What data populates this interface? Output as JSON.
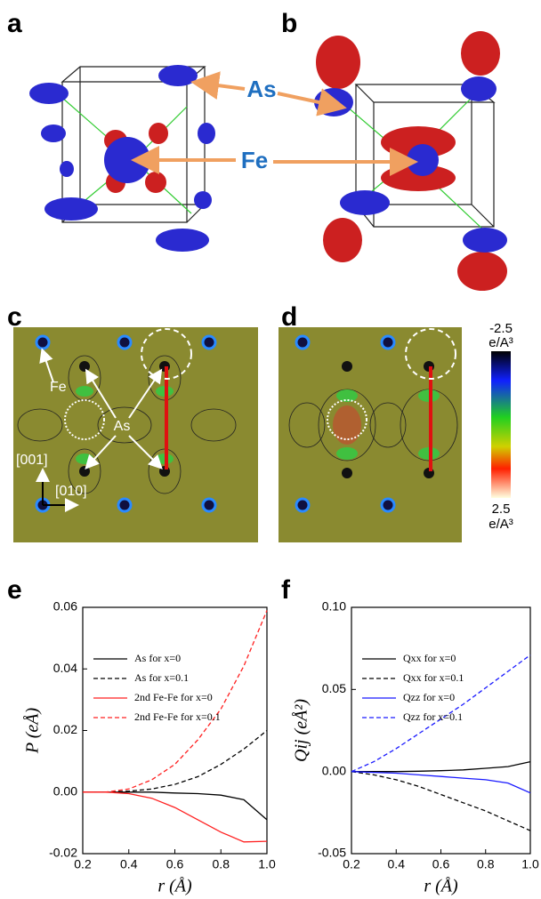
{
  "figure": {
    "panel_labels": [
      "a",
      "b",
      "c",
      "d",
      "e",
      "f"
    ],
    "atom_labels": {
      "as": "As",
      "fe": "Fe"
    },
    "map_labels": {
      "fe": "Fe",
      "as": "As",
      "dir1": "[001]",
      "dir2": "[010]"
    },
    "colorbar": {
      "top": "-2.5",
      "top_unit": "e/A³",
      "bottom": "2.5",
      "bottom_unit": "e/A³"
    }
  },
  "chart_data": [
    {
      "type": "line",
      "xlabel": "r (Å)",
      "ylabel": "P (eÅ)",
      "x": [
        0.2,
        0.3,
        0.4,
        0.5,
        0.6,
        0.7,
        0.8,
        0.9,
        1.0
      ],
      "xlim": [
        0.2,
        1.0
      ],
      "xticks": [
        0.2,
        0.4,
        0.6,
        0.8,
        {
          "value": 1,
          "label": "1.0"
        }
      ],
      "ylim": [
        -0.02,
        0.06
      ],
      "yticks": [
        -0.02,
        {
          "value": 0,
          "label": "0.00"
        },
        0.02,
        0.04,
        0.06
      ],
      "legend": "upper left",
      "series": [
        {
          "name": "As for x=0",
          "color": "#000000",
          "dash": false,
          "values": [
            0,
            0,
            0,
            0,
            -0.0003,
            -0.0005,
            -0.001,
            -0.0025,
            -0.009
          ]
        },
        {
          "name": "As for x=0.1",
          "color": "#000000",
          "dash": true,
          "values": [
            0,
            0,
            0.0003,
            0.001,
            0.0025,
            0.005,
            0.009,
            0.014,
            0.02
          ]
        },
        {
          "name": "2nd Fe-Fe for x=0",
          "color": "#ff2020",
          "dash": false,
          "values": [
            0,
            0,
            -0.0005,
            -0.002,
            -0.005,
            -0.009,
            -0.013,
            -0.0162,
            -0.016
          ]
        },
        {
          "name": "2nd Fe-Fe for x=0.1",
          "color": "#ff2020",
          "dash": true,
          "values": [
            0,
            0,
            0.001,
            0.004,
            0.009,
            0.017,
            0.027,
            0.041,
            0.059
          ]
        }
      ]
    },
    {
      "type": "line",
      "xlabel": "r (Å)",
      "ylabel": "Qij (eÅ²)",
      "x": [
        0.2,
        0.3,
        0.4,
        0.5,
        0.6,
        0.7,
        0.8,
        0.9,
        1.0
      ],
      "xlim": [
        0.2,
        1.0
      ],
      "xticks": [
        0.2,
        0.4,
        0.6,
        0.8,
        {
          "value": 1,
          "label": "1.0"
        }
      ],
      "ylim": [
        -0.05,
        0.1
      ],
      "yticks": [
        -0.05,
        {
          "value": 0,
          "label": "0.00"
        },
        0.05,
        {
          "value": 0.1,
          "label": "0.10"
        }
      ],
      "legend": "upper left",
      "series": [
        {
          "name": "Qxx for x=0",
          "color": "#000000",
          "dash": false,
          "values": [
            0,
            0,
            0,
            0.0002,
            0.0005,
            0.001,
            0.002,
            0.003,
            0.006
          ]
        },
        {
          "name": "Qxx for x=0.1",
          "color": "#000000",
          "dash": true,
          "values": [
            0,
            -0.002,
            -0.005,
            -0.009,
            -0.014,
            -0.019,
            -0.024,
            -0.03,
            -0.036
          ]
        },
        {
          "name": "Qzz for x=0",
          "color": "#1a1aff",
          "dash": false,
          "values": [
            0,
            -0.0005,
            -0.001,
            -0.002,
            -0.003,
            -0.004,
            -0.005,
            -0.007,
            -0.013
          ]
        },
        {
          "name": "Qzz for x=0.1",
          "color": "#1a1aff",
          "dash": true,
          "values": [
            0,
            0.006,
            0.014,
            0.023,
            0.032,
            0.041,
            0.051,
            0.061,
            0.071
          ]
        }
      ]
    }
  ]
}
